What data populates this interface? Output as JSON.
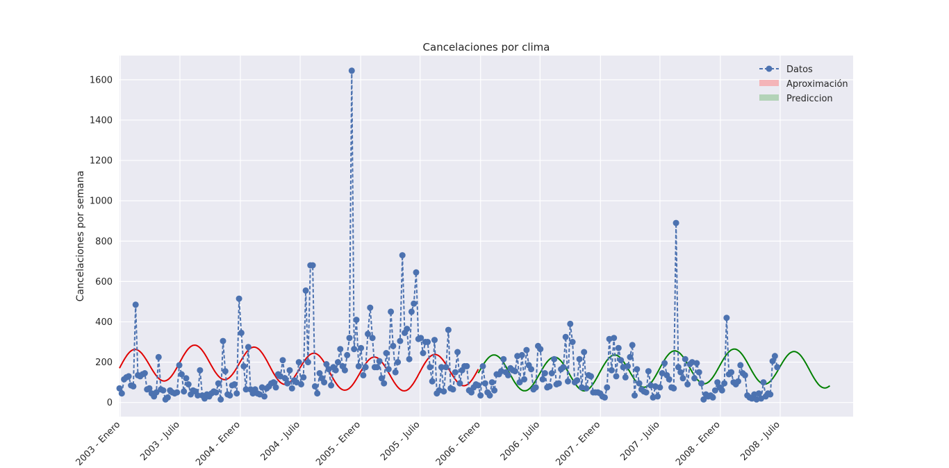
{
  "chart_data": {
    "type": "line",
    "title": "Cancelaciones por clima",
    "xlabel": "",
    "ylabel": "Cancelaciones por semana",
    "xlim": [
      "2002-12-29",
      "2009-02-08"
    ],
    "ylim": [
      -70,
      1720
    ],
    "y_ticks": [
      0,
      200,
      400,
      600,
      800,
      1000,
      1200,
      1400,
      1600
    ],
    "x_ticks": [
      {
        "date": "2003-01-01",
        "label": "2003 - Enero"
      },
      {
        "date": "2003-07-01",
        "label": "2003 - Julio"
      },
      {
        "date": "2004-01-01",
        "label": "2004 - Enero"
      },
      {
        "date": "2004-07-01",
        "label": "2004 - Julio"
      },
      {
        "date": "2005-01-01",
        "label": "2005 - Enero"
      },
      {
        "date": "2005-07-01",
        "label": "2005 - Julio"
      },
      {
        "date": "2006-01-01",
        "label": "2006 - Enero"
      },
      {
        "date": "2006-07-01",
        "label": "2006 - Julio"
      },
      {
        "date": "2007-01-01",
        "label": "2007 - Enero"
      },
      {
        "date": "2007-07-01",
        "label": "2007 - Julio"
      },
      {
        "date": "2008-01-01",
        "label": "2008 - Enero"
      },
      {
        "date": "2008-07-01",
        "label": "2008 - Julio"
      }
    ],
    "grid": true,
    "legend_position": "top-right",
    "legend": [
      "Datos",
      "Aproximación",
      "Prediccion"
    ],
    "colors": {
      "datos": "#4c72b0",
      "aproximacion": "#e00000",
      "prediccion": "#008000",
      "aproximacion_legend": "#f4b4b8",
      "prediccion_legend": "#b3d3b8",
      "background": "#eaeaf2",
      "grid": "#ffffff"
    },
    "series": [
      {
        "name": "Datos",
        "style": "dashed-line-with-markers",
        "start_date": "2002-12-29",
        "interval_days": 7,
        "values": [
          70,
          45,
          115,
          125,
          130,
          85,
          80,
          485,
          135,
          130,
          140,
          145,
          65,
          70,
          45,
          30,
          50,
          225,
          65,
          60,
          15,
          25,
          60,
          50,
          45,
          50,
          185,
          140,
          55,
          120,
          90,
          40,
          60,
          55,
          35,
          160,
          35,
          20,
          40,
          30,
          45,
          55,
          50,
          95,
          15,
          305,
          155,
          40,
          35,
          85,
          90,
          45,
          515,
          345,
          180,
          65,
          275,
          65,
          45,
          65,
          45,
          40,
          75,
          30,
          70,
          80,
          95,
          100,
          75,
          140,
          130,
          210,
          120,
          95,
          160,
          70,
          110,
          100,
          200,
          90,
          125,
          555,
          200,
          680,
          680,
          80,
          45,
          145,
          120,
          100,
          190,
          165,
          85,
          175,
          160,
          200,
          265,
          180,
          160,
          235,
          320,
          1645,
          265,
          410,
          180,
          270,
          135,
          175,
          340,
          470,
          320,
          175,
          175,
          205,
          120,
          95,
          245,
          165,
          450,
          280,
          150,
          200,
          305,
          730,
          345,
          365,
          215,
          450,
          490,
          645,
          315,
          320,
          245,
          300,
          300,
          175,
          105,
          310,
          45,
          60,
          175,
          55,
          175,
          360,
          70,
          65,
          150,
          250,
          95,
          160,
          180,
          180,
          60,
          50,
          75,
          90,
          85,
          35,
          180,
          95,
          50,
          35,
          100,
          60,
          140,
          140,
          155,
          215,
          150,
          135,
          170,
          160,
          155,
          230,
          100,
          235,
          115,
          260,
          185,
          165,
          65,
          75,
          280,
          265,
          115,
          145,
          75,
          80,
          145,
          215,
          90,
          95,
          165,
          175,
          325,
          105,
          390,
          300,
          100,
          110,
          215,
          75,
          250,
          70,
          135,
          130,
          50,
          50,
          50,
          45,
          30,
          25,
          75,
          315,
          160,
          320,
          130,
          270,
          210,
          175,
          125,
          180,
          225,
          285,
          35,
          165,
          95,
          65,
          55,
          50,
          155,
          85,
          25,
          80,
          30,
          75,
          145,
          195,
          135,
          115,
          75,
          70,
          890,
          175,
          150,
          120,
          215,
          90,
          190,
          200,
          120,
          195,
          150,
          95,
          15,
          40,
          30,
          35,
          25,
          60,
          100,
          75,
          60,
          95,
          420,
          140,
          150,
          100,
          90,
          105,
          185,
          145,
          135,
          35,
          25,
          20,
          40,
          15,
          45,
          20,
          100,
          30,
          45,
          40,
          205,
          230,
          175
        ]
      },
      {
        "name": "Aproximación",
        "style": "solid-line",
        "start_date": "2002-12-29",
        "end_date": "2005-12-25",
        "model": "sinusoid",
        "equation": "170 + 85*sin(2*pi*d/182.6) + 30*sin(2*pi*d/1060) with d = days since 2002-12-29"
      },
      {
        "name": "Prediccion",
        "style": "solid-line",
        "start_date": "2005-12-25",
        "end_date": "2008-11-30",
        "model": "sinusoid",
        "equation": "160 + 85*sin(2*pi*d/182.6) - 20*sin(2*pi*d/1060) with d = days since 2002-12-29"
      }
    ]
  }
}
